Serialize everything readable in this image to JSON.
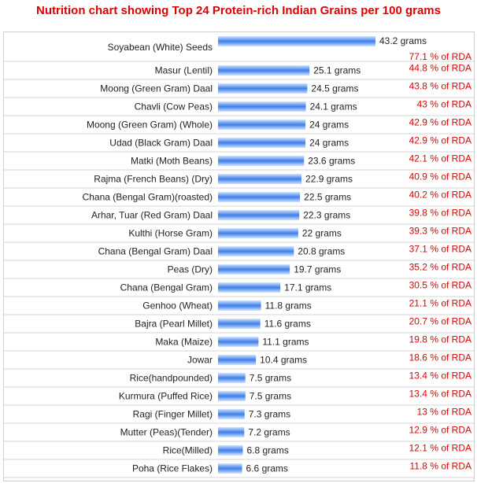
{
  "title": "Nutrition chart showing Top 24 Protein-rich Indian Grains per 100 grams",
  "colors": {
    "title": "#e00000",
    "rda_text": "#e00000",
    "bar_light": "#cfe3ff",
    "bar_dark": "#3f7ee8",
    "row_line": "#d6d6d6",
    "frame": "#cfcfcf"
  },
  "chart_data": {
    "type": "bar",
    "orientation": "horizontal",
    "value_suffix": " grams",
    "rda_suffix": " % of RDA",
    "categories": [
      "Soyabean (White) Seeds",
      "Masur (Lentil)",
      "Moong (Green Gram) Daal",
      "Chavli (Cow Peas)",
      "Moong (Green Gram) (Whole)",
      "Udad (Black Gram) Daal",
      "Matki (Moth Beans)",
      "Rajma (French Beans) (Dry)",
      "Chana (Bengal Gram)(roasted)",
      "Arhar, Tuar (Red Gram) Daal",
      "Kulthi (Horse Gram)",
      "Chana (Bengal Gram) Daal",
      "Peas (Dry)",
      "Chana (Bengal Gram)",
      "Genhoo (Wheat)",
      "Bajra (Pearl Millet)",
      "Maka (Maize)",
      "Jowar",
      "Rice(handpounded)",
      "Kurmura (Puffed Rice)",
      "Ragi (Finger Millet)",
      "Mutter (Peas)(Tender)",
      "Rice(Milled)",
      "Poha (Rice Flakes)"
    ],
    "values": [
      43.2,
      25.1,
      24.5,
      24.1,
      24,
      24,
      23.6,
      22.9,
      22.5,
      22.3,
      22,
      20.8,
      19.7,
      17.1,
      11.8,
      11.6,
      11.1,
      10.4,
      7.5,
      7.5,
      7.3,
      7.2,
      6.8,
      6.6
    ],
    "rda_percent": [
      77.1,
      44.8,
      43.8,
      43,
      42.9,
      42.9,
      42.1,
      40.9,
      40.2,
      39.8,
      39.3,
      37.1,
      35.2,
      30.5,
      21.1,
      20.7,
      19.8,
      18.6,
      13.4,
      13.4,
      13,
      12.9,
      12.1,
      11.8
    ],
    "xlim": [
      0,
      43.2
    ],
    "grid": false,
    "legend": "none"
  }
}
